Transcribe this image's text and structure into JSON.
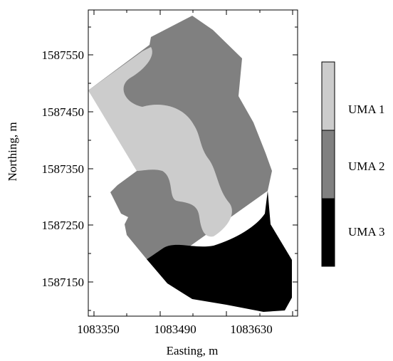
{
  "map": {
    "xlabel": "Easting, m",
    "ylabel": "Northing, m",
    "x_ticks": [
      "1083350",
      "1083490",
      "1083630"
    ],
    "y_ticks": [
      "1587550",
      "1587450",
      "1587350",
      "1587250",
      "1587150"
    ],
    "legend": [
      {
        "label": "UMA 1",
        "color": "#cccccc"
      },
      {
        "label": "UMA 2",
        "color": "#808080"
      },
      {
        "label": "UMA 3",
        "color": "#000000"
      }
    ]
  }
}
